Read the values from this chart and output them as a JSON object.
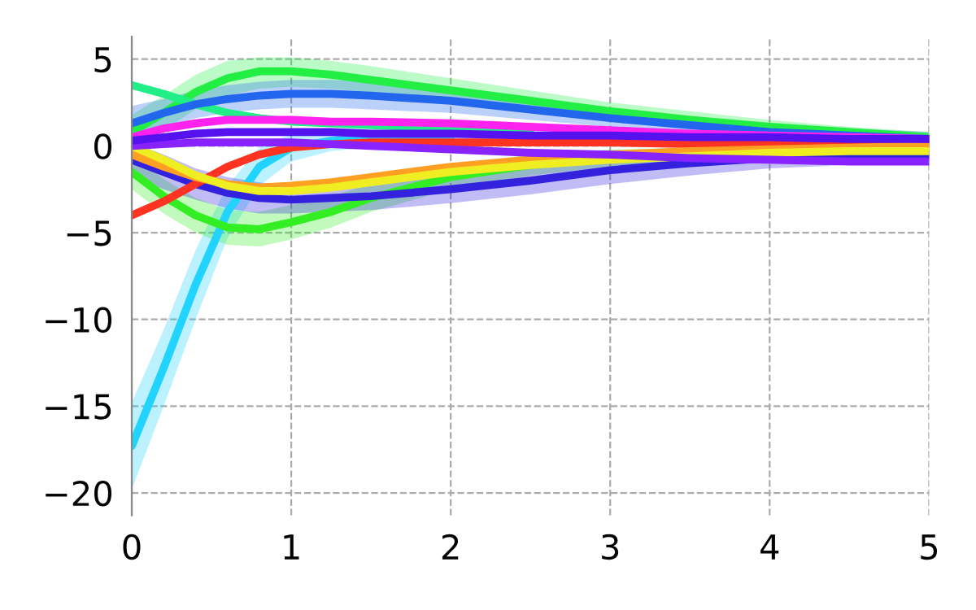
{
  "chart_data": {
    "type": "line",
    "x": [
      0,
      0.2,
      0.4,
      0.6,
      0.8,
      1,
      1.25,
      1.5,
      2,
      2.5,
      3,
      3.5,
      4,
      4.5,
      5
    ],
    "xlim": [
      0,
      5
    ],
    "xticks": [
      0,
      1,
      2,
      3,
      4,
      5
    ],
    "ylim": [
      -21.3,
      6.3
    ],
    "yticks": [
      {
        "value": -20,
        "label": "−20"
      },
      {
        "value": -15,
        "label": "−15"
      },
      {
        "value": -10,
        "label": "−10"
      },
      {
        "value": -5,
        "label": "−5"
      },
      0,
      5
    ],
    "grid": true,
    "line_style": "solid",
    "marker": "none",
    "series": [
      {
        "color": "#22d3ff",
        "values": [
          -17.3,
          -12.8,
          -8,
          -3.8,
          -1.2,
          -0.1,
          0.3,
          0.4,
          0.4,
          null,
          null,
          null,
          null,
          null,
          null
        ],
        "lower": [
          -19.8,
          -15,
          -10,
          -5.3,
          -2.3,
          -0.9,
          -0.3,
          -0.1,
          0,
          0,
          0,
          0,
          0,
          0,
          0
        ],
        "upper": [
          -14.8,
          -10.6,
          -6,
          -2.3,
          -0.1,
          0.7,
          0.9,
          0.9,
          0.8,
          0.6,
          0.6,
          0.4,
          0.4,
          0.3,
          0.2
        ]
      },
      {
        "color": "#22ee44",
        "values": [
          0.8,
          1.9,
          3.1,
          3.9,
          4.3,
          4.3,
          4.1,
          3.8,
          3.2,
          2.6,
          2.0,
          1.5,
          1.1,
          0.8,
          0.5
        ],
        "lower": [
          -0.2,
          0.9,
          2.1,
          2.9,
          3.3,
          3.4,
          3.3,
          3.1,
          2.6,
          2.1,
          1.6,
          1.2,
          0.8,
          0.5,
          0.2
        ],
        "upper": [
          1.8,
          2.9,
          4.1,
          4.9,
          5.1,
          5.1,
          4.9,
          4.6,
          3.9,
          3.2,
          2.5,
          2.0,
          1.5,
          1.1,
          0.8
        ]
      },
      {
        "color": "#33ee22",
        "values": [
          -1.5,
          -2.9,
          -4.0,
          -4.7,
          -4.8,
          -4.4,
          -3.8,
          -3.0,
          -1.8,
          -1.1,
          -0.7,
          null,
          null,
          null,
          null
        ],
        "lower": [
          -2.5,
          -3.9,
          -5.0,
          -5.7,
          -5.8,
          -5.4,
          -4.7,
          -3.8,
          -2.5,
          -1.7,
          -1.2,
          -0.9,
          -0.8,
          -0.6,
          -0.6
        ],
        "upper": [
          -0.5,
          -1.9,
          -3.0,
          -3.7,
          -3.8,
          -3.4,
          -2.9,
          -2.2,
          -1.1,
          -0.5,
          -0.2,
          -0.1,
          0,
          0,
          0
        ]
      },
      {
        "color": "#22ee88",
        "values": [
          3.5,
          3.0,
          2.4,
          1.9,
          1.6,
          1.4,
          1.3,
          1.2,
          1.0,
          0.9,
          null,
          0.6,
          0.5,
          0.4,
          0.3
        ]
      },
      {
        "color": "#2266ee",
        "values": [
          1.3,
          1.9,
          2.4,
          2.7,
          2.9,
          3.0,
          3.0,
          2.9,
          2.6,
          2.1,
          1.6,
          1.2,
          0.8,
          0.6,
          0.4
        ],
        "lower": [
          0.3,
          1.1,
          1.6,
          1.9,
          2.1,
          2.2,
          2.2,
          2.1,
          1.9,
          1.5,
          1.1,
          0.7,
          0.4,
          0.2,
          0.1
        ],
        "upper": [
          2.3,
          2.7,
          3.2,
          3.5,
          3.7,
          3.8,
          3.8,
          3.7,
          3.3,
          2.7,
          2.1,
          1.7,
          1.3,
          1.0,
          0.8
        ]
      },
      {
        "color": "#3322dd",
        "values": [
          -0.8,
          -1.5,
          -2.2,
          -2.7,
          -3.0,
          -3.1,
          -3.0,
          -2.9,
          -2.5,
          -2.0,
          -1.4,
          -1.0,
          -0.7,
          -0.6,
          -0.5
        ],
        "lower": [
          -1.8,
          -2.5,
          -3.1,
          -3.6,
          -3.9,
          -3.9,
          -3.8,
          -3.7,
          -3.3,
          -2.8,
          -2.2,
          -1.7,
          -1.3,
          -1.1,
          -0.9
        ],
        "upper": [
          0.2,
          -0.5,
          -1.3,
          -1.8,
          -2.1,
          -2.3,
          -2.2,
          -2.1,
          -1.7,
          -1.2,
          -0.7,
          -0.4,
          -0.2,
          -0.1,
          0
        ]
      },
      {
        "color": "#ff3322",
        "values": [
          -4.0,
          -3.2,
          -2.2,
          -1.2,
          -0.5,
          -0.1,
          0.1,
          0.2,
          0.2,
          0.2,
          0.2,
          0.1,
          0.1,
          0.1,
          0.1
        ]
      },
      {
        "color": "#ffa022",
        "values": [
          -0.5,
          -1.2,
          -1.8,
          -2.2,
          -2.4,
          -2.3,
          -2.1,
          -1.8,
          -1.2,
          -0.8,
          -0.5,
          -0.3,
          -0.2,
          -0.1,
          0
        ]
      },
      {
        "color": "#eeee22",
        "values": [
          0,
          -0.8,
          -1.7,
          -2.3,
          -2.6,
          -2.6,
          -2.4,
          -2.1,
          -1.5,
          -1.1,
          -0.8,
          -0.6,
          -0.4,
          -0.3,
          -0.3
        ]
      },
      {
        "color": "#ff22ee",
        "values": [
          0.5,
          1.0,
          1.3,
          1.5,
          1.5,
          1.5,
          1.4,
          1.4,
          1.3,
          1.1,
          0.9,
          0.7,
          0.6,
          0.5,
          0.4
        ]
      },
      {
        "color": "#8822ff",
        "values": [
          0,
          0.1,
          0.2,
          0.2,
          0.2,
          0.2,
          0.1,
          0,
          -0.2,
          -0.4,
          -0.5,
          -0.7,
          -0.8,
          -0.9,
          -0.9
        ]
      },
      {
        "color": "#5511ee",
        "values": [
          0.3,
          0.5,
          0.7,
          0.8,
          0.8,
          0.8,
          0.8,
          0.7,
          0.7,
          0.6,
          0.6,
          0.5,
          0.5,
          0.4,
          0.4
        ]
      }
    ]
  }
}
